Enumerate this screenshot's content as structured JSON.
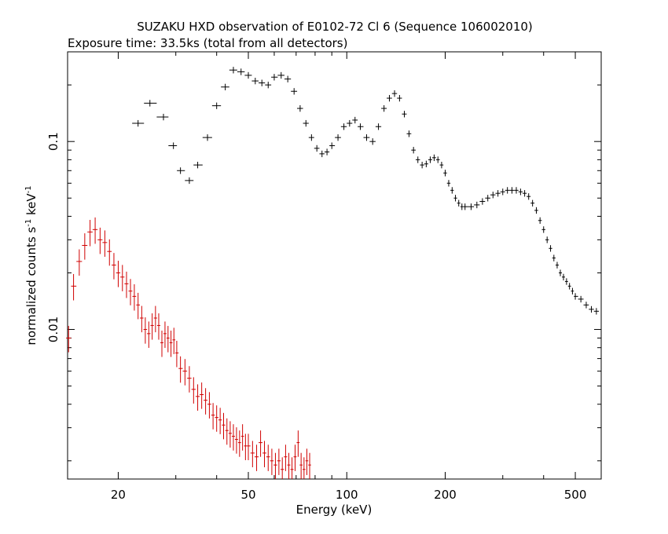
{
  "chart_data": {
    "type": "scatter",
    "title": "SUZAKU HXD observation of E0102-72 Cl 6 (Sequence 106002010)",
    "subtitle": "Exposure time: 33.5ks (total from all detectors)",
    "xlabel": "Energy (keV)",
    "ylabel": "normalized counts s",
    "ylabel_sup1": "-1",
    "ylabel_mid": " keV",
    "ylabel_sup2": "-1",
    "xscale": "log",
    "yscale": "log",
    "xlim": [
      14,
      600
    ],
    "ylim": [
      0.0016,
      0.3
    ],
    "x_tick_labels": [
      "20",
      "50",
      "100",
      "200",
      "500"
    ],
    "x_tick_values": [
      20,
      50,
      100,
      200,
      500
    ],
    "y_tick_labels": [
      "0.01",
      "0.1"
    ],
    "y_tick_values": [
      0.01,
      0.1
    ],
    "grid": false,
    "series": [
      {
        "color": "#000000",
        "x": [
          23,
          25,
          27.5,
          29.5,
          31,
          33,
          35,
          37.5,
          40,
          42.5,
          45,
          47.5,
          50,
          52.5,
          55,
          57.5,
          60,
          63,
          66,
          69,
          72,
          75,
          78,
          81,
          84,
          87,
          90,
          94,
          98,
          102,
          106,
          110,
          115,
          120,
          125,
          130,
          135,
          140,
          145,
          150,
          155,
          160,
          165,
          170,
          175,
          180,
          185,
          190,
          195,
          200,
          205,
          210,
          215,
          220,
          225,
          230,
          240,
          250,
          260,
          270,
          280,
          290,
          300,
          310,
          320,
          330,
          340,
          350,
          360,
          370,
          380,
          390,
          400,
          410,
          420,
          430,
          440,
          450,
          460,
          470,
          480,
          490,
          500,
          520,
          540,
          560,
          580
        ],
        "y": [
          0.125,
          0.16,
          0.135,
          0.095,
          0.07,
          0.062,
          0.075,
          0.105,
          0.155,
          0.195,
          0.24,
          0.235,
          0.225,
          0.21,
          0.205,
          0.2,
          0.22,
          0.225,
          0.215,
          0.185,
          0.15,
          0.125,
          0.105,
          0.092,
          0.086,
          0.088,
          0.095,
          0.105,
          0.12,
          0.125,
          0.13,
          0.12,
          0.105,
          0.1,
          0.12,
          0.15,
          0.17,
          0.18,
          0.17,
          0.14,
          0.11,
          0.09,
          0.08,
          0.075,
          0.076,
          0.08,
          0.082,
          0.08,
          0.075,
          0.068,
          0.06,
          0.055,
          0.05,
          0.047,
          0.045,
          0.045,
          0.045,
          0.046,
          0.048,
          0.05,
          0.052,
          0.053,
          0.054,
          0.055,
          0.055,
          0.055,
          0.054,
          0.053,
          0.051,
          0.047,
          0.043,
          0.038,
          0.034,
          0.03,
          0.027,
          0.024,
          0.022,
          0.02,
          0.019,
          0.018,
          0.017,
          0.016,
          0.015,
          0.0145,
          0.0135,
          0.0128,
          0.0125
        ],
        "yerr_frac": 0.04
      },
      {
        "color": "#d00000",
        "x": [
          14.1,
          14.6,
          15.2,
          15.8,
          16.4,
          17.0,
          17.6,
          18.2,
          18.8,
          19.4,
          20.0,
          20.6,
          21.2,
          21.8,
          22.4,
          23.0,
          23.6,
          24.2,
          24.8,
          25.4,
          26.0,
          26.6,
          27.2,
          27.8,
          28.4,
          29.0,
          29.6,
          30.2,
          31.0,
          32.0,
          33.0,
          34.0,
          35.0,
          36.0,
          37.0,
          38.0,
          39.0,
          40.0,
          41.0,
          42.0,
          43.0,
          44.0,
          45.0,
          46.0,
          47.0,
          48.0,
          49.0,
          50.0,
          51.5,
          53.0,
          54.5,
          56.0,
          57.5,
          59.0,
          60.5,
          62.0,
          63.5,
          65.0,
          66.5,
          68.0,
          69.5,
          71.0,
          72.5,
          74.0,
          75.5,
          77.0
        ],
        "y": [
          0.009,
          0.017,
          0.023,
          0.028,
          0.033,
          0.034,
          0.03,
          0.029,
          0.026,
          0.022,
          0.02,
          0.019,
          0.0175,
          0.016,
          0.015,
          0.0135,
          0.0115,
          0.01,
          0.0095,
          0.0105,
          0.0115,
          0.0105,
          0.0085,
          0.0095,
          0.009,
          0.0085,
          0.0088,
          0.0075,
          0.0062,
          0.006,
          0.0055,
          0.0048,
          0.0044,
          0.0045,
          0.0042,
          0.004,
          0.0035,
          0.0034,
          0.0033,
          0.0031,
          0.0029,
          0.0028,
          0.0027,
          0.0026,
          0.0025,
          0.0027,
          0.0024,
          0.0024,
          0.0022,
          0.0021,
          0.0025,
          0.0022,
          0.0021,
          0.002,
          0.0019,
          0.002,
          0.0018,
          0.0021,
          0.0019,
          0.0018,
          0.0021,
          0.0025,
          0.0019,
          0.0018,
          0.002,
          0.0019
        ],
        "yerr_frac": 0.16
      }
    ]
  }
}
